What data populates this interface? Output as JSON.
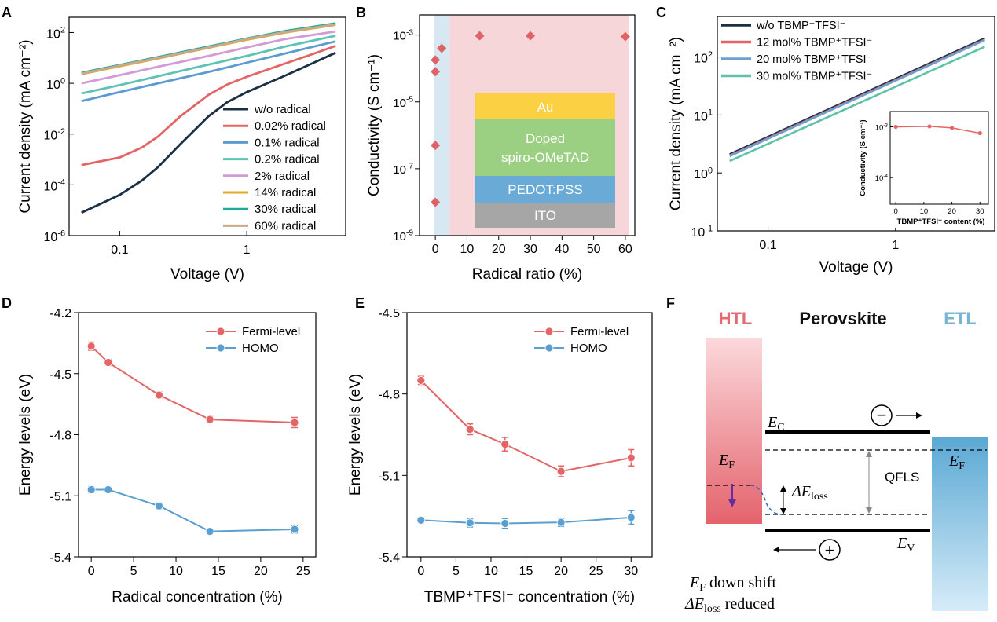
{
  "panel_labels": [
    "A",
    "B",
    "C",
    "D",
    "E",
    "F"
  ],
  "chart_data": [
    {
      "panel": "A",
      "type": "line",
      "xlabel": "Voltage (V)",
      "ylabel": "Current density (mA cm⁻²)",
      "x_scale": "log",
      "y_scale": "log",
      "xlim": [
        0.04,
        6
      ],
      "ylim": [
        1e-06,
        400
      ],
      "xticks": [
        {
          "v": 0.1,
          "label": "0.1"
        },
        {
          "v": 1,
          "label": "1"
        }
      ],
      "yticks": [
        {
          "v": 1e-06,
          "b": "10",
          "e": "-6"
        },
        {
          "v": 0.0001,
          "b": "10",
          "e": "-4"
        },
        {
          "v": 0.01,
          "b": "10",
          "e": "-2"
        },
        {
          "v": 1,
          "b": "10",
          "e": "0"
        },
        {
          "v": 100,
          "b": "10",
          "e": "2"
        }
      ],
      "legend_position": "lower-right",
      "series": [
        {
          "name": "w/o radical",
          "color": "#1b2f46",
          "x": [
            0.05,
            0.1,
            0.15,
            0.2,
            0.3,
            0.5,
            0.7,
            1,
            2,
            3,
            5
          ],
          "y": [
            8e-06,
            4e-05,
            0.00015,
            0.0005,
            0.004,
            0.05,
            0.18,
            0.45,
            2,
            5,
            16
          ]
        },
        {
          "name": "0.02% radical",
          "color": "#e46566",
          "x": [
            0.05,
            0.1,
            0.15,
            0.2,
            0.3,
            0.5,
            0.7,
            1,
            2,
            3,
            5
          ],
          "y": [
            0.0006,
            0.0012,
            0.003,
            0.008,
            0.05,
            0.35,
            0.9,
            1.8,
            6,
            12,
            30
          ]
        },
        {
          "name": "0.1% radical",
          "color": "#5b9bd0",
          "x": [
            0.05,
            0.1,
            0.2,
            0.5,
            1,
            2,
            5
          ],
          "y": [
            0.2,
            0.45,
            1,
            2.8,
            6.5,
            15,
            45
          ]
        },
        {
          "name": "0.2% radical",
          "color": "#5ec2b4",
          "x": [
            0.05,
            0.1,
            0.2,
            0.5,
            1,
            2,
            5
          ],
          "y": [
            0.4,
            0.85,
            1.9,
            5.5,
            12,
            28,
            75
          ]
        },
        {
          "name": "2% radical",
          "color": "#d49ad7",
          "x": [
            0.05,
            0.1,
            0.2,
            0.5,
            1,
            2,
            5
          ],
          "y": [
            1,
            2.1,
            4.5,
            12,
            26,
            55,
            110
          ]
        },
        {
          "name": "14% radical",
          "color": "#e3a72a",
          "x": [
            0.05,
            0.1,
            0.2,
            0.5,
            1,
            2,
            5
          ],
          "y": [
            2.3,
            4.7,
            9.5,
            25,
            52,
            100,
            200
          ]
        },
        {
          "name": "30% radical",
          "color": "#1fa99c",
          "x": [
            0.05,
            0.1,
            0.2,
            0.5,
            1,
            2,
            5
          ],
          "y": [
            2.6,
            5.3,
            10.8,
            28,
            58,
            115,
            230
          ]
        },
        {
          "name": "60% radical",
          "color": "#c9a98e",
          "x": [
            0.05,
            0.1,
            0.2,
            0.5,
            1,
            2,
            5
          ],
          "y": [
            2.4,
            5,
            10,
            26,
            55,
            105,
            210
          ]
        }
      ]
    },
    {
      "panel": "B",
      "type": "scatter",
      "xlabel": "Radical ratio (%)",
      "ylabel": "Conductivity (S cm⁻¹)",
      "y_scale": "log",
      "xlim": [
        -5,
        63
      ],
      "ylim": [
        1e-09,
        0.004
      ],
      "xticks": [
        0,
        10,
        20,
        30,
        40,
        50,
        60
      ],
      "yticks": [
        {
          "v": 1e-09,
          "b": "10",
          "e": "-9"
        },
        {
          "v": 1e-07,
          "b": "10",
          "e": "-7"
        },
        {
          "v": 1e-05,
          "b": "10",
          "e": "-5"
        },
        {
          "v": 0.001,
          "b": "10",
          "e": "-3"
        }
      ],
      "marker": "diamond",
      "marker_color": "#e06266",
      "x": [
        0,
        0,
        0,
        0,
        2,
        14,
        30,
        60
      ],
      "y": [
        1e-08,
        5e-07,
        8e-05,
        0.00018,
        0.0004,
        0.00095,
        0.00095,
        0.0009
      ],
      "shaded_regions": [
        {
          "from": -0.5,
          "to": 4.5,
          "color": "#d8e8f3"
        },
        {
          "from": 4.5,
          "to": 61,
          "color": "#f6d6d9"
        }
      ],
      "inset_layers": [
        {
          "label": "Au",
          "color": "#fbd042"
        },
        {
          "label": "Doped\nspiro-OMeTAD",
          "color": "#9bcf82"
        },
        {
          "label": "PEDOT:PSS",
          "color": "#6aaad6"
        },
        {
          "label": "ITO",
          "color": "#a6a6a6"
        }
      ]
    },
    {
      "panel": "C",
      "type": "line",
      "xlabel": "Voltage (V)",
      "ylabel": "Current density (mA cm⁻²)",
      "x_scale": "log",
      "y_scale": "log",
      "xlim": [
        0.04,
        6
      ],
      "ylim": [
        0.1,
        500
      ],
      "xticks": [
        {
          "v": 0.1,
          "label": "0.1"
        },
        {
          "v": 1,
          "label": "1"
        }
      ],
      "yticks": [
        {
          "v": 0.1,
          "b": "10",
          "e": "-1"
        },
        {
          "v": 1,
          "b": "10",
          "e": "0"
        },
        {
          "v": 10,
          "b": "10",
          "e": "1"
        },
        {
          "v": 100,
          "b": "10",
          "e": "2"
        }
      ],
      "legend_position": "top-left",
      "series": [
        {
          "name": "w/o TBMP⁺TFSI⁻",
          "color": "#1b2f46",
          "x": [
            0.05,
            5
          ],
          "y": [
            2.1,
            210
          ]
        },
        {
          "name": "12 mol% TBMP⁺TFSI⁻",
          "color": "#e46566",
          "x": [
            0.05,
            5
          ],
          "y": [
            2.0,
            200
          ]
        },
        {
          "name": "20 mol% TBMP⁺TFSI⁻",
          "color": "#6ba0d2",
          "x": [
            0.05,
            5
          ],
          "y": [
            1.95,
            195
          ]
        },
        {
          "name": "30 mol% TBMP⁺TFSI⁻",
          "color": "#5ec2a8",
          "x": [
            0.05,
            5
          ],
          "y": [
            1.6,
            150
          ]
        }
      ],
      "inset": {
        "type": "line",
        "xlabel": "TBMP⁺TFSI⁻ content (%)",
        "ylabel": "Conductivity (S cm⁻¹)",
        "xlim": [
          -2,
          33
        ],
        "ylim": [
          3e-05,
          0.002
        ],
        "xticks": [
          0,
          10,
          20,
          30
        ],
        "yticks": [
          {
            "v": 0.0001,
            "b": "10",
            "e": "-4"
          },
          {
            "v": 0.001,
            "b": "10",
            "e": "-3"
          }
        ],
        "x": [
          0,
          12,
          20,
          30
        ],
        "y": [
          0.001,
          0.00102,
          0.00095,
          0.00075
        ],
        "color": "#e46566"
      }
    },
    {
      "panel": "D",
      "type": "line",
      "xlabel": "Radical concentration (%)",
      "ylabel": "Energy levels (eV)",
      "xlim": [
        -1.5,
        26.5
      ],
      "ylim": [
        -5.4,
        -4.2
      ],
      "xticks": [
        0,
        5,
        10,
        15,
        20,
        25
      ],
      "yticks": [
        {
          "v": -4.2,
          "label": "-4.2"
        },
        {
          "v": -4.5,
          "label": "-4.5"
        },
        {
          "v": -4.8,
          "label": "-4.8"
        },
        {
          "v": -5.1,
          "label": "-5.1"
        },
        {
          "v": -5.4,
          "label": "-5.4"
        }
      ],
      "legend_position": "top-right",
      "series": [
        {
          "name": "Fermi-level",
          "color": "#e46566",
          "x": [
            0,
            2,
            8,
            14,
            24
          ],
          "y": [
            -4.365,
            -4.445,
            -4.605,
            -4.725,
            -4.74
          ],
          "err": [
            0.02,
            0.015,
            0.015,
            0.015,
            0.025
          ]
        },
        {
          "name": "HOMO",
          "color": "#5b9fd0",
          "x": [
            0,
            2,
            8,
            14,
            24
          ],
          "y": [
            -5.07,
            -5.07,
            -5.15,
            -5.275,
            -5.265
          ],
          "err": [
            0.015,
            0.012,
            0.015,
            0.012,
            0.018
          ]
        }
      ]
    },
    {
      "panel": "E",
      "type": "line",
      "xlabel": "TBMP⁺TFSI⁻ concentration (%)",
      "ylabel": "Energy levels (eV)",
      "xlim": [
        -2,
        33
      ],
      "ylim": [
        -5.4,
        -4.5
      ],
      "xticks": [
        0,
        5,
        10,
        15,
        20,
        25,
        30
      ],
      "yticks": [
        {
          "v": -4.5,
          "label": "-4.5"
        },
        {
          "v": -4.8,
          "label": "-4.8"
        },
        {
          "v": -5.1,
          "label": "-5.1"
        },
        {
          "v": -5.4,
          "label": "-5.4"
        }
      ],
      "legend_position": "top-right",
      "series": [
        {
          "name": "Fermi-level",
          "color": "#e46566",
          "x": [
            0,
            7,
            12,
            20,
            30
          ],
          "y": [
            -4.75,
            -4.93,
            -4.985,
            -5.085,
            -5.035
          ],
          "err": [
            0.015,
            0.02,
            0.025,
            0.02,
            0.03
          ]
        },
        {
          "name": "HOMO",
          "color": "#5b9fd0",
          "x": [
            0,
            7,
            12,
            20,
            30
          ],
          "y": [
            -5.265,
            -5.275,
            -5.277,
            -5.273,
            -5.255
          ],
          "err": [
            0.01,
            0.015,
            0.018,
            0.015,
            0.025
          ]
        }
      ]
    }
  ],
  "diagram_f": {
    "htl_label": "HTL",
    "perovskite_label": "Perovskite",
    "etl_label": "ETL",
    "ec_label": {
      "main": "E",
      "sub": "C"
    },
    "ev_label": {
      "main": "E",
      "sub": "V"
    },
    "ef_left": {
      "main": "E",
      "sub": "F"
    },
    "ef_right": {
      "main": "E",
      "sub": "F"
    },
    "delta_e_loss": {
      "main": "ΔE",
      "sub": "loss"
    },
    "qfls_label": "QFLS",
    "electron_symbol": "−",
    "hole_symbol": "+",
    "caption_line1": {
      "main": "E",
      "sub": "F",
      "rest": " down shift"
    },
    "caption_line2": {
      "main": "ΔE",
      "sub": "loss",
      "rest": " reduced"
    },
    "colors": {
      "htl": "#e46a72",
      "etl": "#6fb2d8",
      "htl_text": "#e46a72",
      "etl_text": "#7ab3d3"
    }
  }
}
